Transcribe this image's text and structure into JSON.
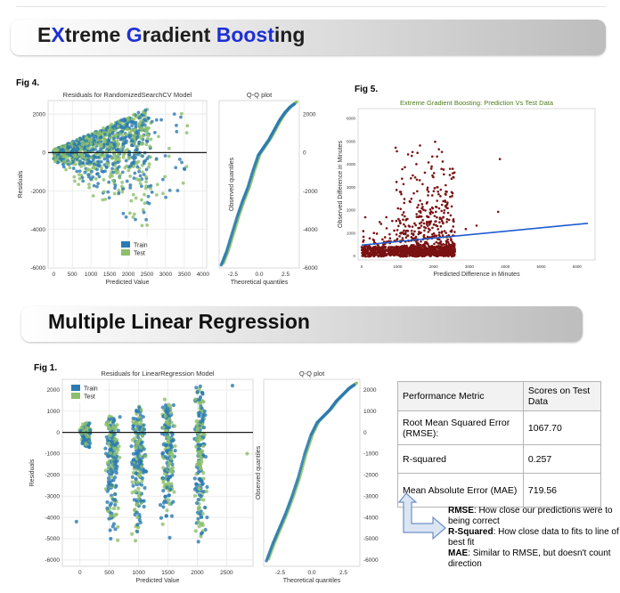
{
  "sections": {
    "xgb": {
      "title_parts": [
        {
          "text": "E",
          "color": "#1f1f1f"
        },
        {
          "text": "X",
          "color": "#1d2fd6"
        },
        {
          "text": "treme ",
          "color": "#1f1f1f"
        },
        {
          "text": "G",
          "color": "#1d2fd6"
        },
        {
          "text": "radient ",
          "color": "#1f1f1f"
        },
        {
          "text": "Boost",
          "color": "#1d2fd6"
        },
        {
          "text": "ing",
          "color": "#1f1f1f"
        }
      ]
    },
    "mlr": {
      "title": "Multiple Linear Regression"
    }
  },
  "figures": {
    "fig4": {
      "label": "Fig 4."
    },
    "fig5": {
      "label": "Fig 5."
    },
    "fig1": {
      "label": "Fig 1."
    }
  },
  "colors": {
    "train": "#2b7bb2",
    "test": "#8cbf6a",
    "line": "#1a1a1a",
    "scatter5": "#7a1212",
    "regline": "#1f5bd0",
    "fig5_title": "#4e7a1a"
  },
  "chart_data": [
    {
      "id": "fig4_residuals",
      "type": "scatter",
      "title": "Residuals for RandomizedSearchCV Model",
      "xlabel": "Predicted Value",
      "ylabel": "Residuals",
      "xlim": [
        -150,
        4100
      ],
      "ylim": [
        -6000,
        2700
      ],
      "xticks": [
        0,
        500,
        1000,
        1500,
        2000,
        2500,
        3000,
        3500,
        4000
      ],
      "yticks": [
        -6000,
        -4000,
        -2000,
        0,
        2000
      ],
      "grid": true,
      "legend": "bottom-center",
      "series": [
        {
          "name": "Train",
          "color": "#2b7bb2"
        },
        {
          "name": "Test",
          "color": "#8cbf6a"
        }
      ],
      "zero_line": 0
    },
    {
      "id": "fig4_qq",
      "type": "line",
      "title": "Q-Q plot",
      "xlabel": "Theoretical quantiles",
      "ylabel": "Observed quantiles",
      "xlim": [
        -3.8,
        3.8
      ],
      "ylim": [
        -6000,
        2700
      ],
      "xticks": [
        -2.5,
        0.0,
        2.5
      ],
      "yticks": [
        -6000,
        -4000,
        -2000,
        0,
        2000
      ],
      "x": [
        -3.5,
        -3.0,
        -2.5,
        -2.0,
        -1.5,
        -1.0,
        -0.5,
        0.0,
        0.5,
        1.0,
        1.5,
        2.0,
        2.5,
        3.0,
        3.5
      ],
      "y": [
        -5800,
        -5100,
        -4200,
        -3300,
        -2500,
        -1800,
        -900,
        -100,
        300,
        700,
        1200,
        1700,
        2100,
        2400,
        2600
      ]
    },
    {
      "id": "fig5",
      "type": "scatter",
      "title": "Extreme Gradient Boosting: Prediction Vs Test Data",
      "xlabel": "Predicted Difference in Minutes",
      "ylabel": "Observed Difference in Minutes",
      "xlim": [
        -100,
        6500
      ],
      "ylim": [
        -200,
        6400
      ],
      "xticks": [
        0,
        1000,
        2000,
        3000,
        4000,
        5000,
        6000
      ],
      "yticks": [
        0,
        1000,
        2000,
        3000,
        4000,
        5000,
        6000
      ],
      "regression": {
        "x": [
          0,
          6300
        ],
        "y": [
          450,
          1400
        ]
      }
    },
    {
      "id": "fig1_residuals",
      "type": "scatter",
      "title": "Residuals for LinearRegression Model",
      "xlabel": "Predicted Value",
      "ylabel": "Residuals",
      "xlim": [
        -300,
        2950
      ],
      "ylim": [
        -6300,
        2500
      ],
      "xticks": [
        0,
        500,
        1000,
        1500,
        2000,
        2500
      ],
      "yticks": [
        -6000,
        -5000,
        -4000,
        -3000,
        -2000,
        -1000,
        0,
        1000,
        2000
      ],
      "grid": true,
      "legend": "top-left",
      "series": [
        {
          "name": "Train",
          "color": "#2b7bb2"
        },
        {
          "name": "Test",
          "color": "#8cbf6a"
        }
      ],
      "zero_line": 0
    },
    {
      "id": "fig1_qq",
      "type": "line",
      "title": "Q-Q plot",
      "xlabel": "Theoretical quantiles",
      "ylabel": "Observed quantiles",
      "xlim": [
        -3.8,
        3.8
      ],
      "ylim": [
        -6300,
        2500
      ],
      "xticks": [
        -2.5,
        0.0,
        2.5
      ],
      "yticks": [
        -6000,
        -5000,
        -4000,
        -3000,
        -2000,
        -1000,
        0,
        1000,
        2000
      ],
      "x": [
        -3.5,
        -3.0,
        -2.5,
        -2.0,
        -1.5,
        -1.0,
        -0.5,
        0.0,
        0.5,
        1.0,
        1.5,
        2.0,
        2.5,
        3.0,
        3.5
      ],
      "y": [
        -6000,
        -5200,
        -4500,
        -3800,
        -3000,
        -2100,
        -1000,
        -100,
        500,
        800,
        1100,
        1500,
        1800,
        2100,
        2300
      ]
    }
  ],
  "metrics_table": {
    "headers": [
      "Performance Metric",
      "Scores on Test Data"
    ],
    "rows": [
      [
        "Root Mean Squared Error (RMSE):",
        "1067.70"
      ],
      [
        "R-squared",
        "0.257"
      ],
      [
        "Mean Absolute Error (MAE)",
        "719.56"
      ]
    ]
  },
  "notes": [
    {
      "term": "RMSE",
      "text": ": How close our predictions were to being correct"
    },
    {
      "term": "R-Squared",
      "text": ": How close data to fits to line of best fit"
    },
    {
      "term": "MAE",
      "text": ": Similar to RMSE, but doesn't count direction"
    }
  ]
}
